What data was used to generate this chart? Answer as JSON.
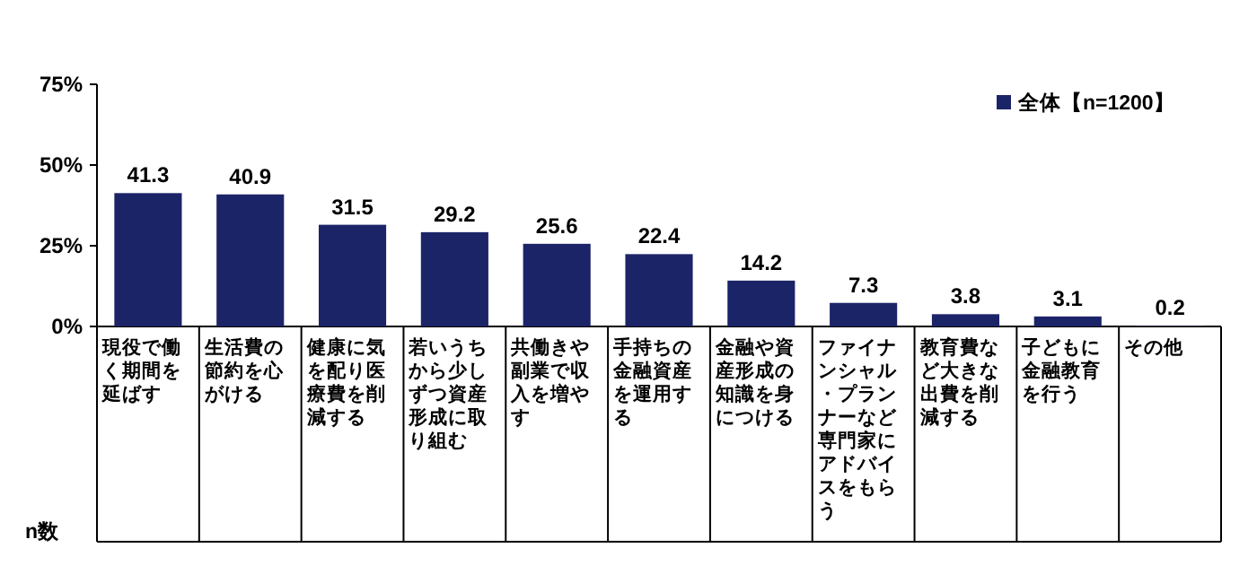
{
  "chart_data": {
    "type": "bar",
    "categories": [
      "現役で働く期間を延ばす",
      "生活費の節約を心がける",
      "健康に気を配り医療費を削減する",
      "若いうちから少しずつ資産形成に取り組む",
      "共働きや副業で収入を増やす",
      "手持ちの金融資産を運用する",
      "金融や資産形成の知識を身につける",
      "ファイナンシャル・プランナーなど専門家にアドバイスをもらう",
      "教育費など大きな出費を削減する",
      "子どもに金融教育を行う",
      "その他"
    ],
    "series": [
      {
        "name": "全体【n=1200】",
        "color": "#1c2468",
        "values": [
          41.3,
          40.9,
          31.5,
          29.2,
          25.6,
          22.4,
          14.2,
          7.3,
          3.8,
          3.1,
          0.2
        ]
      }
    ],
    "ylim": [
      0,
      75
    ],
    "yticks": [
      {
        "value": 0,
        "label": "0%"
      },
      {
        "value": 25,
        "label": "25%"
      },
      {
        "value": 50,
        "label": "50%"
      },
      {
        "value": 75,
        "label": "75%"
      }
    ],
    "data_labels": true,
    "grid": false,
    "legend": "top right",
    "annotations": [
      "n数"
    ]
  }
}
